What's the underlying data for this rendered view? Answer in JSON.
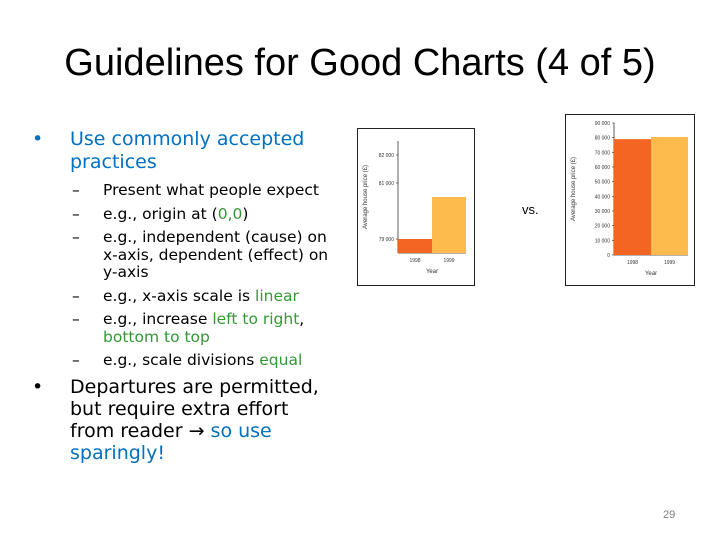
{
  "slide": {
    "title": "Guidelines for Good Charts (4 of 5)",
    "page_number": "29",
    "vs_label": "vs.",
    "bullet1": {
      "text_line1": "Use commonly accepted",
      "text_line2": "practices"
    },
    "subitems": {
      "item1": "Present what people expect",
      "item2_pre": "e.g., origin at (",
      "item2_green": "0,0",
      "item2_post": ")",
      "item3_line1": "e.g., independent (cause) on",
      "item3_line2": "x-axis, dependent (effect) on",
      "item3_line3": "y-axis",
      "item4_pre": "e.g., x-axis scale is ",
      "item4_green": "linear",
      "item5_pre": "e.g., increase ",
      "item5_green1": "left to right",
      "item5_mid": ",",
      "item5_green2": "bottom to top",
      "item6_pre": "e.g., scale divisions ",
      "item6_green": "equal"
    },
    "bullet2": {
      "line1": "Departures are permitted,",
      "line2": "but require extra effort",
      "line3_pre": "from reader ",
      "line3_arrow": "→",
      "line3_blue": " so use",
      "line4_blue": "sparingly!"
    }
  },
  "chart_data": [
    {
      "type": "bar",
      "ylabel": "Average house price (£)",
      "xlabel": "Year",
      "categories": [
        "1998",
        "1999"
      ],
      "values": [
        79000,
        80500
      ],
      "yticks": [
        "79 000",
        "81 000",
        "82 000"
      ],
      "ylim": [
        78500,
        82500
      ],
      "colors": [
        "#f26522",
        "#fdbb4d"
      ]
    },
    {
      "type": "bar",
      "ylabel": "Average house price (£)",
      "xlabel": "Year",
      "categories": [
        "1998",
        "1999"
      ],
      "values": [
        79000,
        80500
      ],
      "yticks": [
        "0",
        "10 000",
        "20 000",
        "30 000",
        "40 000",
        "50 000",
        "60 000",
        "70 000",
        "80 000",
        "90 000"
      ],
      "ylim": [
        0,
        90000
      ],
      "colors": [
        "#f26522",
        "#fdbb4d"
      ]
    }
  ]
}
